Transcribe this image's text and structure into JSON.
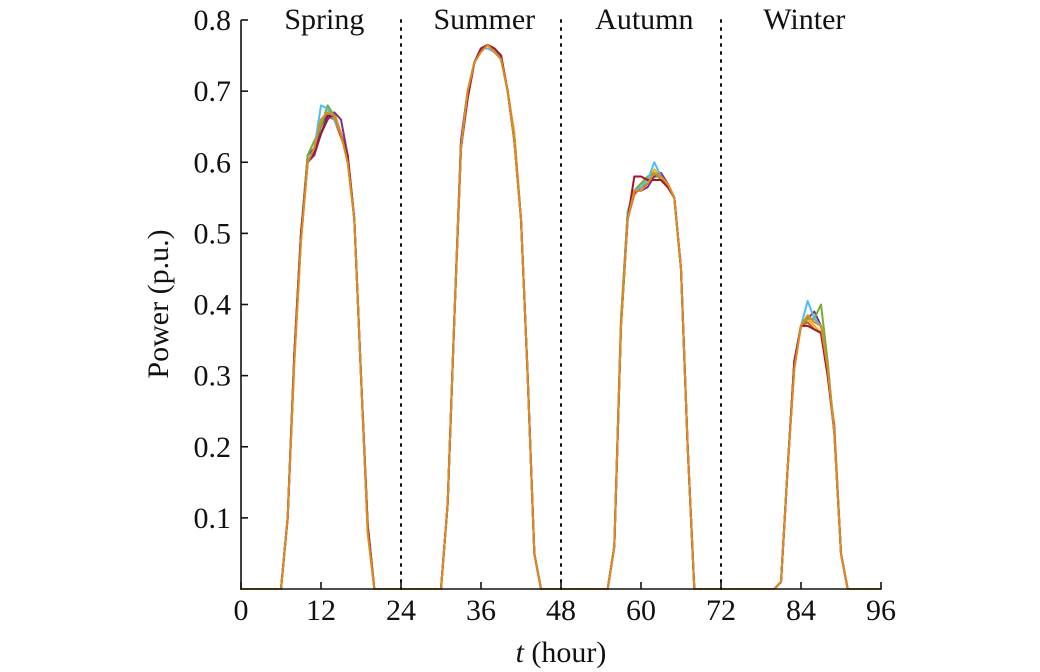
{
  "chart_data": {
    "type": "line",
    "xlabel_var": "t",
    "xlabel_rest": " (hour)",
    "ylabel": "Power (p.u.)",
    "xlim": [
      0,
      96
    ],
    "ylim": [
      0,
      0.8
    ],
    "xticks": [
      0,
      12,
      24,
      36,
      48,
      60,
      72,
      84,
      96
    ],
    "yticks": [
      0.1,
      0.2,
      0.3,
      0.4,
      0.5,
      0.6,
      0.7,
      0.8
    ],
    "ytick_labels": [
      "0.1",
      "0.2",
      "0.3",
      "0.4",
      "0.5",
      "0.6",
      "0.7",
      "0.8"
    ],
    "dividers_x": [
      24,
      48,
      72
    ],
    "dividers_style": "dotted",
    "grid": false,
    "legend": "none",
    "season_labels": [
      {
        "text": "Spring",
        "x": 12.5
      },
      {
        "text": "Summer",
        "x": 36.5
      },
      {
        "text": "Autumn",
        "x": 60.5
      },
      {
        "text": "Winter",
        "x": 84.5
      }
    ],
    "x": [
      0,
      1,
      2,
      3,
      4,
      5,
      6,
      7,
      8,
      9,
      10,
      11,
      12,
      13,
      14,
      15,
      16,
      17,
      18,
      19,
      20,
      21,
      22,
      23,
      24,
      25,
      26,
      27,
      28,
      29,
      30,
      31,
      32,
      33,
      34,
      35,
      36,
      37,
      38,
      39,
      40,
      41,
      42,
      43,
      44,
      45,
      46,
      47,
      48,
      49,
      50,
      51,
      52,
      53,
      54,
      55,
      56,
      57,
      58,
      59,
      60,
      61,
      62,
      63,
      64,
      65,
      66,
      67,
      68,
      69,
      70,
      71,
      72,
      73,
      74,
      75,
      76,
      77,
      78,
      79,
      80,
      81,
      82,
      83,
      84,
      85,
      86,
      87,
      88,
      89,
      90,
      91,
      92,
      93,
      94,
      95,
      96
    ],
    "series": [
      {
        "color": "#0072BD",
        "values": [
          0,
          0,
          0,
          0,
          0,
          0,
          0,
          0.1,
          0.33,
          0.5,
          0.61,
          0.62,
          0.65,
          0.67,
          0.66,
          0.64,
          0.6,
          0.52,
          0.3,
          0.09,
          0,
          0,
          0,
          0,
          0,
          0,
          0,
          0,
          0,
          0,
          0,
          0.12,
          0.38,
          0.63,
          0.7,
          0.74,
          0.76,
          0.765,
          0.76,
          0.75,
          0.7,
          0.63,
          0.52,
          0.3,
          0.05,
          0,
          0,
          0,
          0,
          0,
          0,
          0,
          0,
          0,
          0,
          0,
          0.06,
          0.37,
          0.52,
          0.56,
          0.57,
          0.575,
          0.58,
          0.58,
          0.57,
          0.55,
          0.45,
          0.2,
          0,
          0,
          0,
          0,
          0,
          0,
          0,
          0,
          0,
          0,
          0,
          0,
          0,
          0.01,
          0.17,
          0.32,
          0.37,
          0.38,
          0.38,
          0.37,
          0.31,
          0.22,
          0.05,
          0,
          0,
          0,
          0,
          0,
          0
        ]
      },
      {
        "color": "#D95319",
        "values": [
          0,
          0,
          0,
          0,
          0,
          0,
          0,
          0.1,
          0.32,
          0.49,
          0.6,
          0.615,
          0.64,
          0.665,
          0.66,
          0.635,
          0.61,
          0.52,
          0.3,
          0.08,
          0,
          0,
          0,
          0,
          0,
          0,
          0,
          0,
          0,
          0,
          0,
          0.12,
          0.38,
          0.62,
          0.69,
          0.74,
          0.76,
          0.765,
          0.755,
          0.745,
          0.7,
          0.64,
          0.52,
          0.3,
          0.05,
          0,
          0,
          0,
          0,
          0,
          0,
          0,
          0,
          0,
          0,
          0,
          0.06,
          0.37,
          0.52,
          0.555,
          0.565,
          0.57,
          0.58,
          0.58,
          0.57,
          0.55,
          0.45,
          0.2,
          0,
          0,
          0,
          0,
          0,
          0,
          0,
          0,
          0,
          0,
          0,
          0,
          0,
          0.01,
          0.17,
          0.31,
          0.37,
          0.375,
          0.365,
          0.36,
          0.3,
          0.23,
          0.05,
          0,
          0,
          0,
          0,
          0,
          0
        ]
      },
      {
        "color": "#EDB120",
        "values": [
          0,
          0,
          0,
          0,
          0,
          0,
          0,
          0.1,
          0.32,
          0.49,
          0.6,
          0.62,
          0.66,
          0.67,
          0.67,
          0.64,
          0.6,
          0.52,
          0.3,
          0.09,
          0,
          0,
          0,
          0,
          0,
          0,
          0,
          0,
          0,
          0,
          0,
          0.12,
          0.38,
          0.62,
          0.7,
          0.74,
          0.76,
          0.765,
          0.76,
          0.75,
          0.7,
          0.64,
          0.52,
          0.3,
          0.05,
          0,
          0,
          0,
          0,
          0,
          0,
          0,
          0,
          0,
          0,
          0,
          0.06,
          0.38,
          0.53,
          0.56,
          0.57,
          0.575,
          0.59,
          0.58,
          0.57,
          0.55,
          0.45,
          0.2,
          0,
          0,
          0,
          0,
          0,
          0,
          0,
          0,
          0,
          0,
          0,
          0,
          0,
          0.01,
          0.17,
          0.32,
          0.37,
          0.38,
          0.37,
          0.36,
          0.31,
          0.22,
          0.05,
          0,
          0,
          0,
          0,
          0,
          0
        ]
      },
      {
        "color": "#7E2F8E",
        "values": [
          0,
          0,
          0,
          0,
          0,
          0,
          0,
          0.1,
          0.33,
          0.5,
          0.6,
          0.61,
          0.64,
          0.66,
          0.67,
          0.66,
          0.61,
          0.52,
          0.3,
          0.09,
          0,
          0,
          0,
          0,
          0,
          0,
          0,
          0,
          0,
          0,
          0,
          0.12,
          0.38,
          0.63,
          0.7,
          0.74,
          0.76,
          0.765,
          0.76,
          0.75,
          0.7,
          0.63,
          0.52,
          0.3,
          0.05,
          0,
          0,
          0,
          0,
          0,
          0,
          0,
          0,
          0,
          0,
          0,
          0.06,
          0.37,
          0.53,
          0.56,
          0.56,
          0.565,
          0.58,
          0.585,
          0.57,
          0.55,
          0.45,
          0.2,
          0,
          0,
          0,
          0,
          0,
          0,
          0,
          0,
          0,
          0,
          0,
          0,
          0,
          0.01,
          0.17,
          0.32,
          0.37,
          0.38,
          0.39,
          0.37,
          0.31,
          0.22,
          0.05,
          0,
          0,
          0,
          0,
          0,
          0
        ]
      },
      {
        "color": "#77AC30",
        "values": [
          0,
          0,
          0,
          0,
          0,
          0,
          0,
          0.1,
          0.33,
          0.5,
          0.61,
          0.63,
          0.65,
          0.68,
          0.665,
          0.64,
          0.61,
          0.52,
          0.3,
          0.09,
          0,
          0,
          0,
          0,
          0,
          0,
          0,
          0,
          0,
          0,
          0,
          0.12,
          0.38,
          0.62,
          0.7,
          0.74,
          0.76,
          0.765,
          0.76,
          0.75,
          0.7,
          0.63,
          0.52,
          0.3,
          0.05,
          0,
          0,
          0,
          0,
          0,
          0,
          0,
          0,
          0,
          0,
          0,
          0.06,
          0.38,
          0.53,
          0.56,
          0.57,
          0.58,
          0.585,
          0.575,
          0.57,
          0.55,
          0.45,
          0.2,
          0,
          0,
          0,
          0,
          0,
          0,
          0,
          0,
          0,
          0,
          0,
          0,
          0,
          0.01,
          0.17,
          0.32,
          0.37,
          0.38,
          0.38,
          0.4,
          0.32,
          0.22,
          0.05,
          0,
          0,
          0,
          0,
          0,
          0
        ]
      },
      {
        "color": "#4DBEEE",
        "values": [
          0,
          0,
          0,
          0,
          0,
          0,
          0,
          0.1,
          0.33,
          0.5,
          0.6,
          0.62,
          0.68,
          0.675,
          0.66,
          0.64,
          0.61,
          0.52,
          0.3,
          0.09,
          0,
          0,
          0,
          0,
          0,
          0,
          0,
          0,
          0,
          0,
          0,
          0.12,
          0.38,
          0.62,
          0.7,
          0.74,
          0.76,
          0.76,
          0.755,
          0.75,
          0.7,
          0.63,
          0.52,
          0.3,
          0.05,
          0,
          0,
          0,
          0,
          0,
          0,
          0,
          0,
          0,
          0,
          0,
          0.06,
          0.37,
          0.53,
          0.56,
          0.565,
          0.575,
          0.6,
          0.58,
          0.57,
          0.55,
          0.45,
          0.2,
          0,
          0,
          0,
          0,
          0,
          0,
          0,
          0,
          0,
          0,
          0,
          0,
          0,
          0.01,
          0.17,
          0.32,
          0.37,
          0.405,
          0.38,
          0.37,
          0.31,
          0.22,
          0.05,
          0,
          0,
          0,
          0,
          0,
          0
        ]
      },
      {
        "color": "#A2142F",
        "values": [
          0,
          0,
          0,
          0,
          0,
          0,
          0,
          0.1,
          0.33,
          0.5,
          0.6,
          0.615,
          0.64,
          0.665,
          0.665,
          0.64,
          0.61,
          0.52,
          0.3,
          0.09,
          0,
          0,
          0,
          0,
          0,
          0,
          0,
          0,
          0,
          0,
          0,
          0.12,
          0.38,
          0.62,
          0.69,
          0.74,
          0.76,
          0.765,
          0.76,
          0.75,
          0.7,
          0.63,
          0.52,
          0.3,
          0.05,
          0,
          0,
          0,
          0,
          0,
          0,
          0,
          0,
          0,
          0,
          0,
          0.06,
          0.37,
          0.52,
          0.58,
          0.58,
          0.575,
          0.575,
          0.575,
          0.565,
          0.55,
          0.45,
          0.2,
          0,
          0,
          0,
          0,
          0,
          0,
          0,
          0,
          0,
          0,
          0,
          0,
          0,
          0.01,
          0.17,
          0.32,
          0.37,
          0.37,
          0.365,
          0.36,
          0.3,
          0.22,
          0.05,
          0,
          0,
          0,
          0,
          0,
          0
        ]
      },
      {
        "color": "#E08A1E",
        "values": [
          0,
          0,
          0,
          0,
          0,
          0,
          0,
          0.1,
          0.32,
          0.49,
          0.6,
          0.62,
          0.66,
          0.67,
          0.665,
          0.64,
          0.6,
          0.52,
          0.3,
          0.08,
          0,
          0,
          0,
          0,
          0,
          0,
          0,
          0,
          0,
          0,
          0,
          0.12,
          0.38,
          0.62,
          0.7,
          0.74,
          0.755,
          0.765,
          0.755,
          0.745,
          0.7,
          0.63,
          0.52,
          0.3,
          0.05,
          0,
          0,
          0,
          0,
          0,
          0,
          0,
          0,
          0,
          0,
          0,
          0.06,
          0.37,
          0.52,
          0.56,
          0.56,
          0.57,
          0.585,
          0.58,
          0.57,
          0.55,
          0.45,
          0.2,
          0,
          0,
          0,
          0,
          0,
          0,
          0,
          0,
          0,
          0,
          0,
          0,
          0,
          0.01,
          0.17,
          0.31,
          0.37,
          0.385,
          0.375,
          0.37,
          0.31,
          0.22,
          0.05,
          0,
          0,
          0,
          0,
          0,
          0
        ]
      }
    ]
  }
}
